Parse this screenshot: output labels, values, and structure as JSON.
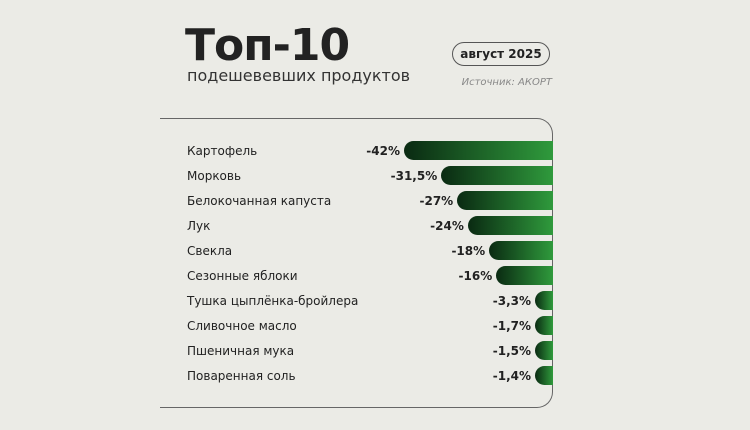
{
  "header": {
    "title": "Топ-10",
    "subtitle": "подешевевших продуктов",
    "date": "август 2025",
    "source": "Источник: АКОРТ"
  },
  "colors": {
    "bar_start": "#0a2a12",
    "bar_end": "#2f9a3c",
    "background": "#ebebe6"
  },
  "chart_data": {
    "type": "bar",
    "orientation": "horizontal",
    "title": "Топ-10",
    "subtitle": "подешевевших продуктов",
    "categories": [
      "Картофель",
      "Морковь",
      "Белокочанная капуста",
      "Лук",
      "Свекла",
      "Сезонные яблоки",
      "Тушка цыплёнка-бройлера",
      "Сливочное масло",
      "Пшеничная мука",
      "Поваренная соль"
    ],
    "values": [
      -42,
      -31.5,
      -27,
      -24,
      -18,
      -16,
      -3.3,
      -1.7,
      -1.5,
      -1.4
    ],
    "labels": [
      "-42%",
      "-31,5%",
      "-27%",
      "-24%",
      "-18%",
      "-16%",
      "-3,3%",
      "-1,7%",
      "-1,5%",
      "-1,4%"
    ],
    "unit": "%",
    "grid": false,
    "legend": "none"
  }
}
